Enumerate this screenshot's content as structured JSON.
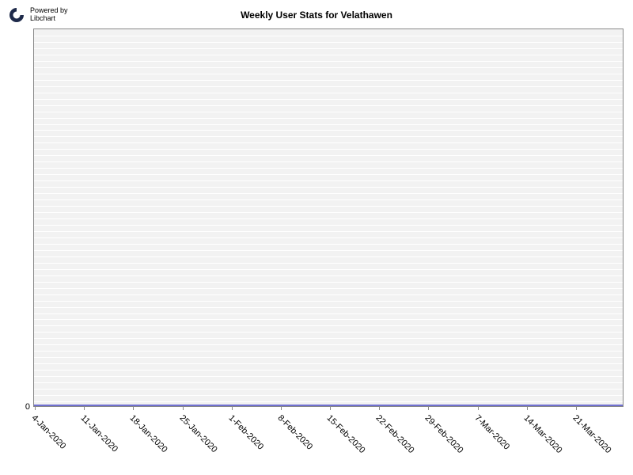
{
  "branding": {
    "powered_by_line1": "Powered by",
    "powered_by_line2": "Libchart",
    "icon_color": "#1e2a4a"
  },
  "chart": {
    "type": "line",
    "title": "Weekly User Stats for Velathawen",
    "title_fontsize": 12,
    "title_fontweight": "bold",
    "background_color": "#ffffff",
    "plot_background_color": "#f2f2f2",
    "gridline_color": "#ffffff",
    "border_color": "#888888",
    "series": {
      "color": "#7070d0",
      "line_width": 2,
      "values": [
        0,
        0,
        0,
        0,
        0,
        0,
        0,
        0,
        0,
        0,
        0,
        0
      ]
    },
    "y_axis": {
      "min": 0,
      "ticks": [
        0
      ],
      "label_fontsize": 11
    },
    "x_axis": {
      "label_fontsize": 11,
      "label_rotation_deg": 45,
      "categories": [
        "4-Jan-2020",
        "11-Jan-2020",
        "18-Jan-2020",
        "25-Jan-2020",
        "1-Feb-2020",
        "8-Feb-2020",
        "15-Feb-2020",
        "22-Feb-2020",
        "29-Feb-2020",
        "7-Mar-2020",
        "14-Mar-2020",
        "21-Mar-2020"
      ]
    },
    "horizontal_gridline_count": 60
  }
}
